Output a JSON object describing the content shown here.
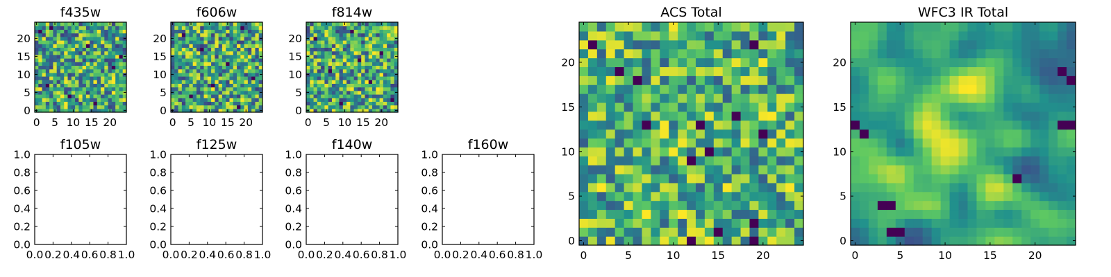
{
  "figure": {
    "background": "#ffffff",
    "colormap": "viridis",
    "colormap_stops": [
      "#440154",
      "#3b528b",
      "#21918c",
      "#5ec962",
      "#fde725"
    ]
  },
  "chart_data": [
    {
      "type": "heatmap",
      "title": "f435w",
      "grid_size": 25,
      "seed": 11,
      "smooth": 0,
      "value_range": [
        0.2,
        1.0
      ],
      "dark_cells": [
        [
          1,
          22
        ],
        [
          4,
          23
        ],
        [
          14,
          18
        ],
        [
          21,
          12
        ],
        [
          3,
          7
        ],
        [
          16,
          2
        ],
        [
          9,
          4
        ],
        [
          23,
          15
        ]
      ],
      "xticks": [
        0,
        5,
        10,
        15,
        20
      ],
      "yticks": [
        0,
        5,
        10,
        15,
        20
      ],
      "xlim": [
        0,
        24
      ],
      "ylim": [
        0,
        24
      ],
      "grid": false
    },
    {
      "type": "heatmap",
      "title": "f606w",
      "grid_size": 25,
      "seed": 23,
      "smooth": 0,
      "value_range": [
        0.2,
        1.0
      ],
      "dark_cells": [
        [
          3,
          21
        ],
        [
          19,
          23
        ],
        [
          8,
          17
        ],
        [
          15,
          13
        ],
        [
          22,
          9
        ],
        [
          5,
          4
        ],
        [
          18,
          1
        ],
        [
          11,
          7
        ]
      ],
      "xticks": [
        0,
        5,
        10,
        15,
        20
      ],
      "yticks": [
        0,
        5,
        10,
        15,
        20
      ],
      "xlim": [
        0,
        24
      ],
      "ylim": [
        0,
        24
      ],
      "grid": false
    },
    {
      "type": "heatmap",
      "title": "f814w",
      "grid_size": 25,
      "seed": 37,
      "smooth": 0,
      "value_range": [
        0.2,
        1.0
      ],
      "dark_cells": [
        [
          2,
          20
        ],
        [
          12,
          22
        ],
        [
          20,
          16
        ],
        [
          6,
          11
        ],
        [
          17,
          8
        ],
        [
          9,
          2
        ],
        [
          23,
          3
        ],
        [
          14,
          14
        ]
      ],
      "xticks": [
        0,
        5,
        10,
        15,
        20
      ],
      "yticks": [
        0,
        5,
        10,
        15,
        20
      ],
      "xlim": [
        0,
        24
      ],
      "ylim": [
        0,
        24
      ],
      "grid": false
    },
    {
      "type": "heatmap",
      "title": "f105w",
      "empty": true,
      "xticks": [
        "0.0",
        "0.2",
        "0.4",
        "0.6",
        "0.8",
        "1.0"
      ],
      "yticks": [
        "0.0",
        "0.2",
        "0.4",
        "0.6",
        "0.8",
        "1.0"
      ],
      "xlim": [
        0,
        1
      ],
      "ylim": [
        0,
        1
      ],
      "grid": false
    },
    {
      "type": "heatmap",
      "title": "f125w",
      "empty": true,
      "xticks": [
        "0.0",
        "0.2",
        "0.4",
        "0.6",
        "0.8",
        "1.0"
      ],
      "yticks": [
        "0.0",
        "0.2",
        "0.4",
        "0.6",
        "0.8",
        "1.0"
      ],
      "xlim": [
        0,
        1
      ],
      "ylim": [
        0,
        1
      ],
      "grid": false
    },
    {
      "type": "heatmap",
      "title": "f140w",
      "empty": true,
      "xticks": [
        "0.0",
        "0.2",
        "0.4",
        "0.6",
        "0.8",
        "1.0"
      ],
      "yticks": [
        "0.0",
        "0.2",
        "0.4",
        "0.6",
        "0.8",
        "1.0"
      ],
      "xlim": [
        0,
        1
      ],
      "ylim": [
        0,
        1
      ],
      "grid": false
    },
    {
      "type": "heatmap",
      "title": "f160w",
      "empty": true,
      "xticks": [
        "0.0",
        "0.2",
        "0.4",
        "0.6",
        "0.8",
        "1.0"
      ],
      "yticks": [
        "0.0",
        "0.2",
        "0.4",
        "0.6",
        "0.8",
        "1.0"
      ],
      "xlim": [
        0,
        1
      ],
      "ylim": [
        0,
        1
      ],
      "grid": false
    },
    {
      "type": "heatmap",
      "title": "ACS Total",
      "grid_size": 25,
      "seed": 53,
      "smooth": 0,
      "value_range": [
        0.3,
        1.0
      ],
      "dark_cells": [
        [
          1,
          22
        ],
        [
          19,
          22
        ],
        [
          6,
          18
        ],
        [
          13,
          13
        ],
        [
          17,
          14
        ],
        [
          7,
          13
        ],
        [
          14,
          10
        ],
        [
          12,
          9
        ],
        [
          19,
          2
        ],
        [
          15,
          1
        ],
        [
          12,
          0
        ],
        [
          19,
          0
        ],
        [
          4,
          19
        ],
        [
          20,
          12
        ]
      ],
      "xticks": [
        0,
        5,
        10,
        15,
        20
      ],
      "yticks": [
        0,
        5,
        10,
        15,
        20
      ],
      "xlim": [
        0,
        24
      ],
      "ylim": [
        0,
        24
      ],
      "grid": false
    },
    {
      "type": "heatmap",
      "title": "WFC3 IR Total",
      "grid_size": 25,
      "seed": 71,
      "smooth": 3,
      "value_range": [
        0.25,
        1.0
      ],
      "dark_cells": [
        [
          1,
          12
        ],
        [
          0,
          13
        ],
        [
          4,
          4
        ],
        [
          3,
          4
        ],
        [
          5,
          1
        ],
        [
          4,
          1
        ],
        [
          18,
          7
        ],
        [
          23,
          13
        ],
        [
          24,
          13
        ],
        [
          24,
          18
        ],
        [
          23,
          19
        ]
      ],
      "xticks": [
        0,
        5,
        10,
        15,
        20
      ],
      "yticks": [
        0,
        5,
        10,
        15,
        20
      ],
      "xlim": [
        0,
        24
      ],
      "ylim": [
        0,
        24
      ],
      "grid": false
    }
  ]
}
